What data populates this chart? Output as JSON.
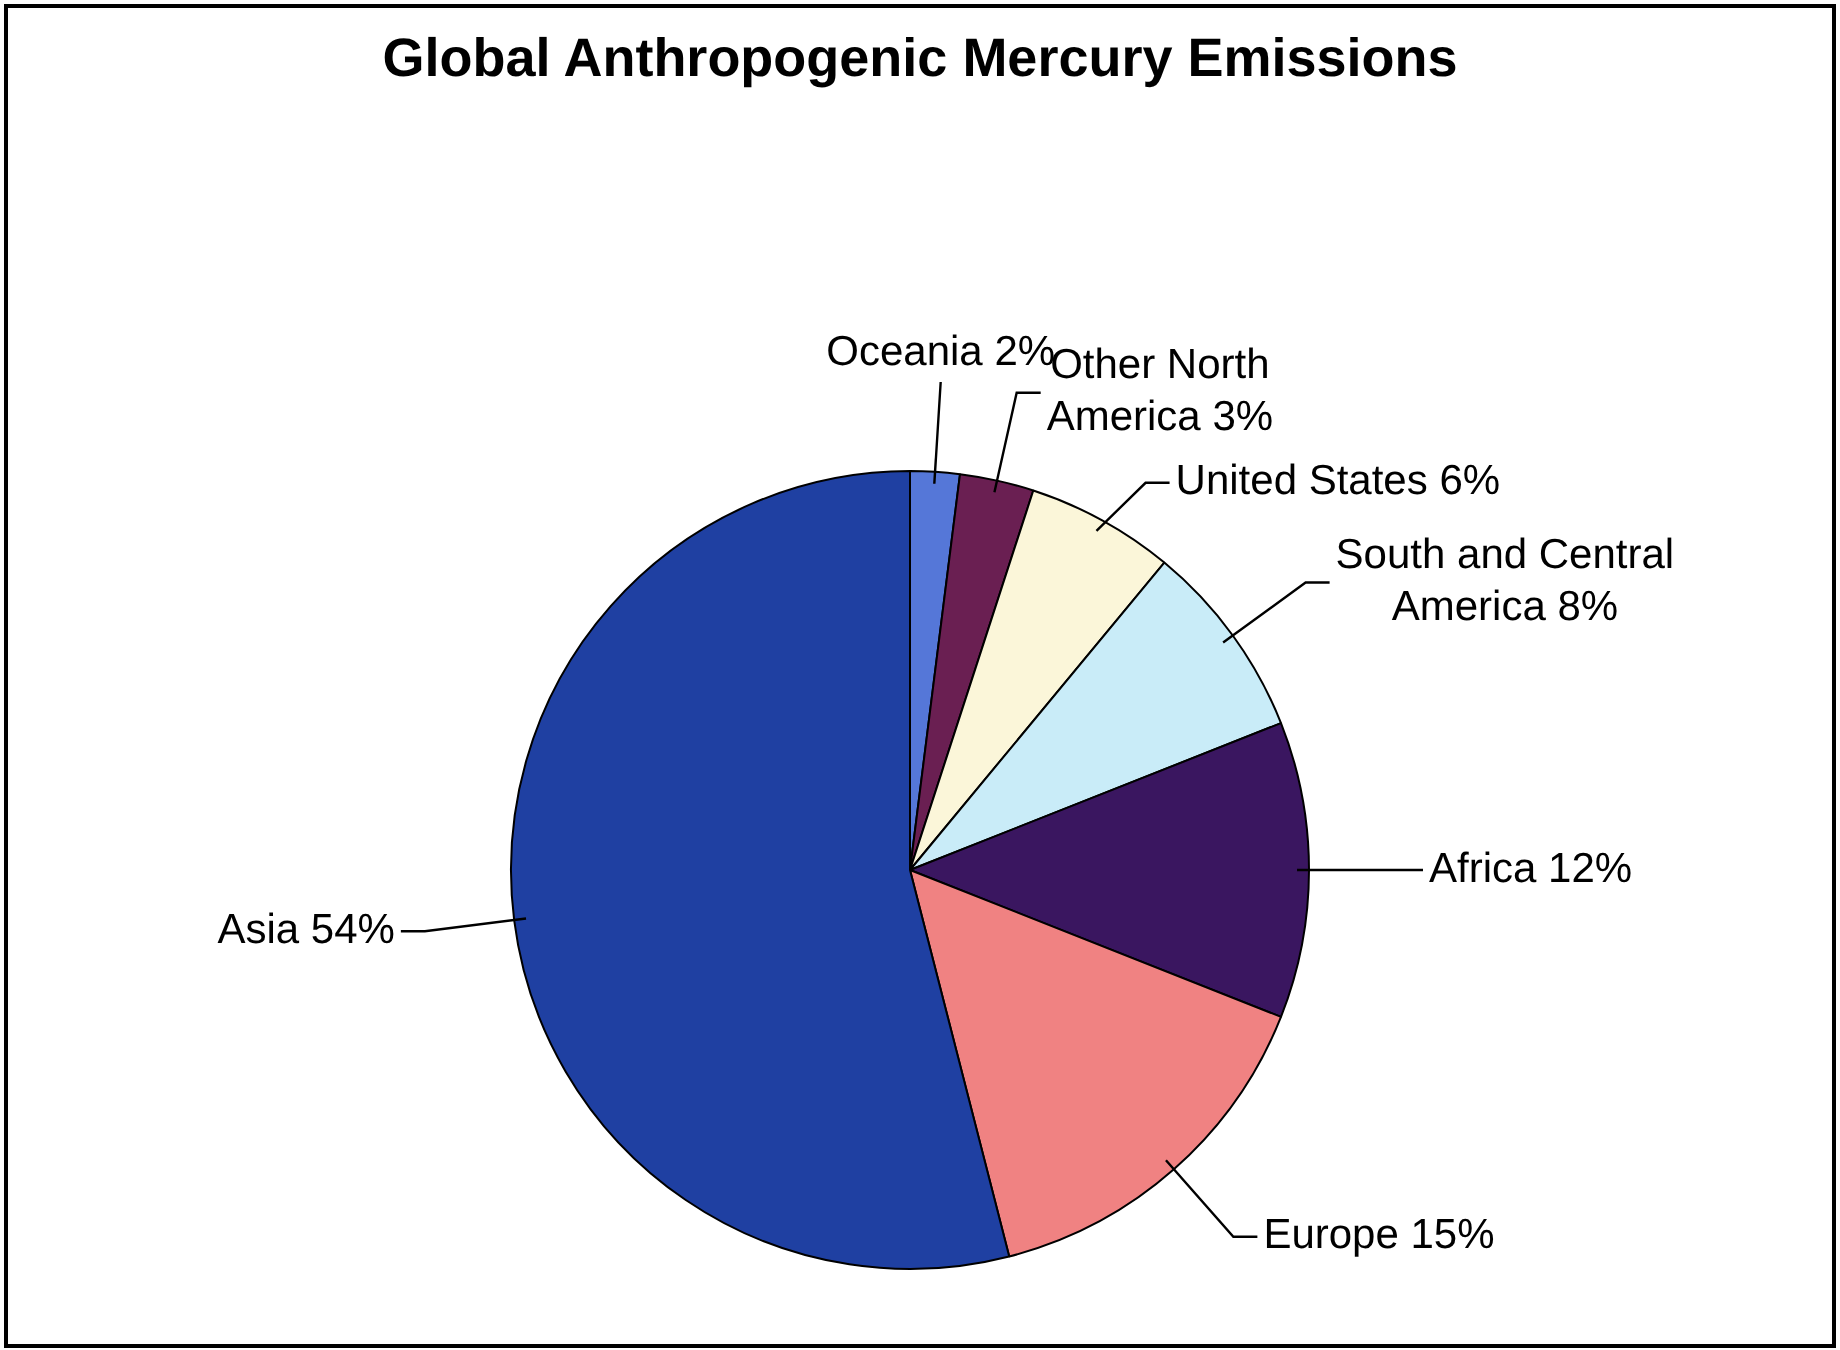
{
  "chart_data": {
    "type": "pie",
    "title": "Global Anthropogenic Mercury Emissions",
    "categories": [
      "Oceania",
      "Other North America",
      "United States",
      "South and Central America",
      "Africa",
      "Europe",
      "Asia"
    ],
    "values": [
      2,
      3,
      6,
      8,
      12,
      15,
      54
    ],
    "value_labels": [
      "2%",
      "3%",
      "6%",
      "8%",
      "12%",
      "15%",
      "54%"
    ],
    "colors": [
      "#5577d8",
      "#6a1f52",
      "#fbf6d9",
      "#c9ecf8",
      "#3a1660",
      "#f08282",
      "#1f40a2"
    ],
    "legend": false
  }
}
